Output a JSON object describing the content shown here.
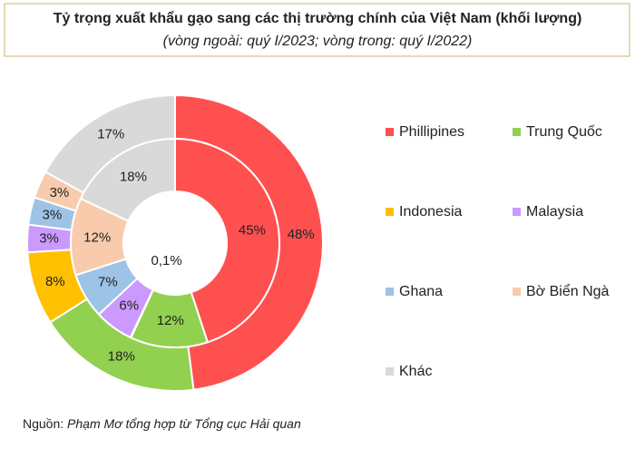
{
  "chart_data": {
    "type": "donut",
    "title": "Tỷ trọng xuất khẩu gạo sang các thị trường chính của Việt Nam (khối lượng)",
    "subtitle": "(vòng ngoài: quý I/2023; vòng trong: quý I/2022)",
    "categories": [
      "Phillipines",
      "Trung Quốc",
      "Indonesia",
      "Malaysia",
      "Ghana",
      "Bờ Biển Ngà",
      "Khác"
    ],
    "colors": [
      "#ff5050",
      "#92d050",
      "#ffc000",
      "#cc99ff",
      "#9dc3e6",
      "#f8cbad",
      "#d9d9d9"
    ],
    "series": [
      {
        "values": [
          48,
          18,
          8,
          3,
          3,
          3,
          17
        ],
        "value_labels": [
          "48%",
          "18%",
          "8%",
          "3%",
          "3%",
          "3%",
          "17%"
        ]
      },
      {
        "values": [
          45,
          12,
          0.1,
          6,
          7,
          12,
          18
        ],
        "value_labels": [
          "45%",
          "12%",
          "0,1%",
          "6%",
          "7%",
          "12%",
          "18%"
        ]
      }
    ],
    "source_label": "Nguồn:",
    "source": "Phạm Mơ tổng hợp từ Tổng cục Hải quan"
  }
}
